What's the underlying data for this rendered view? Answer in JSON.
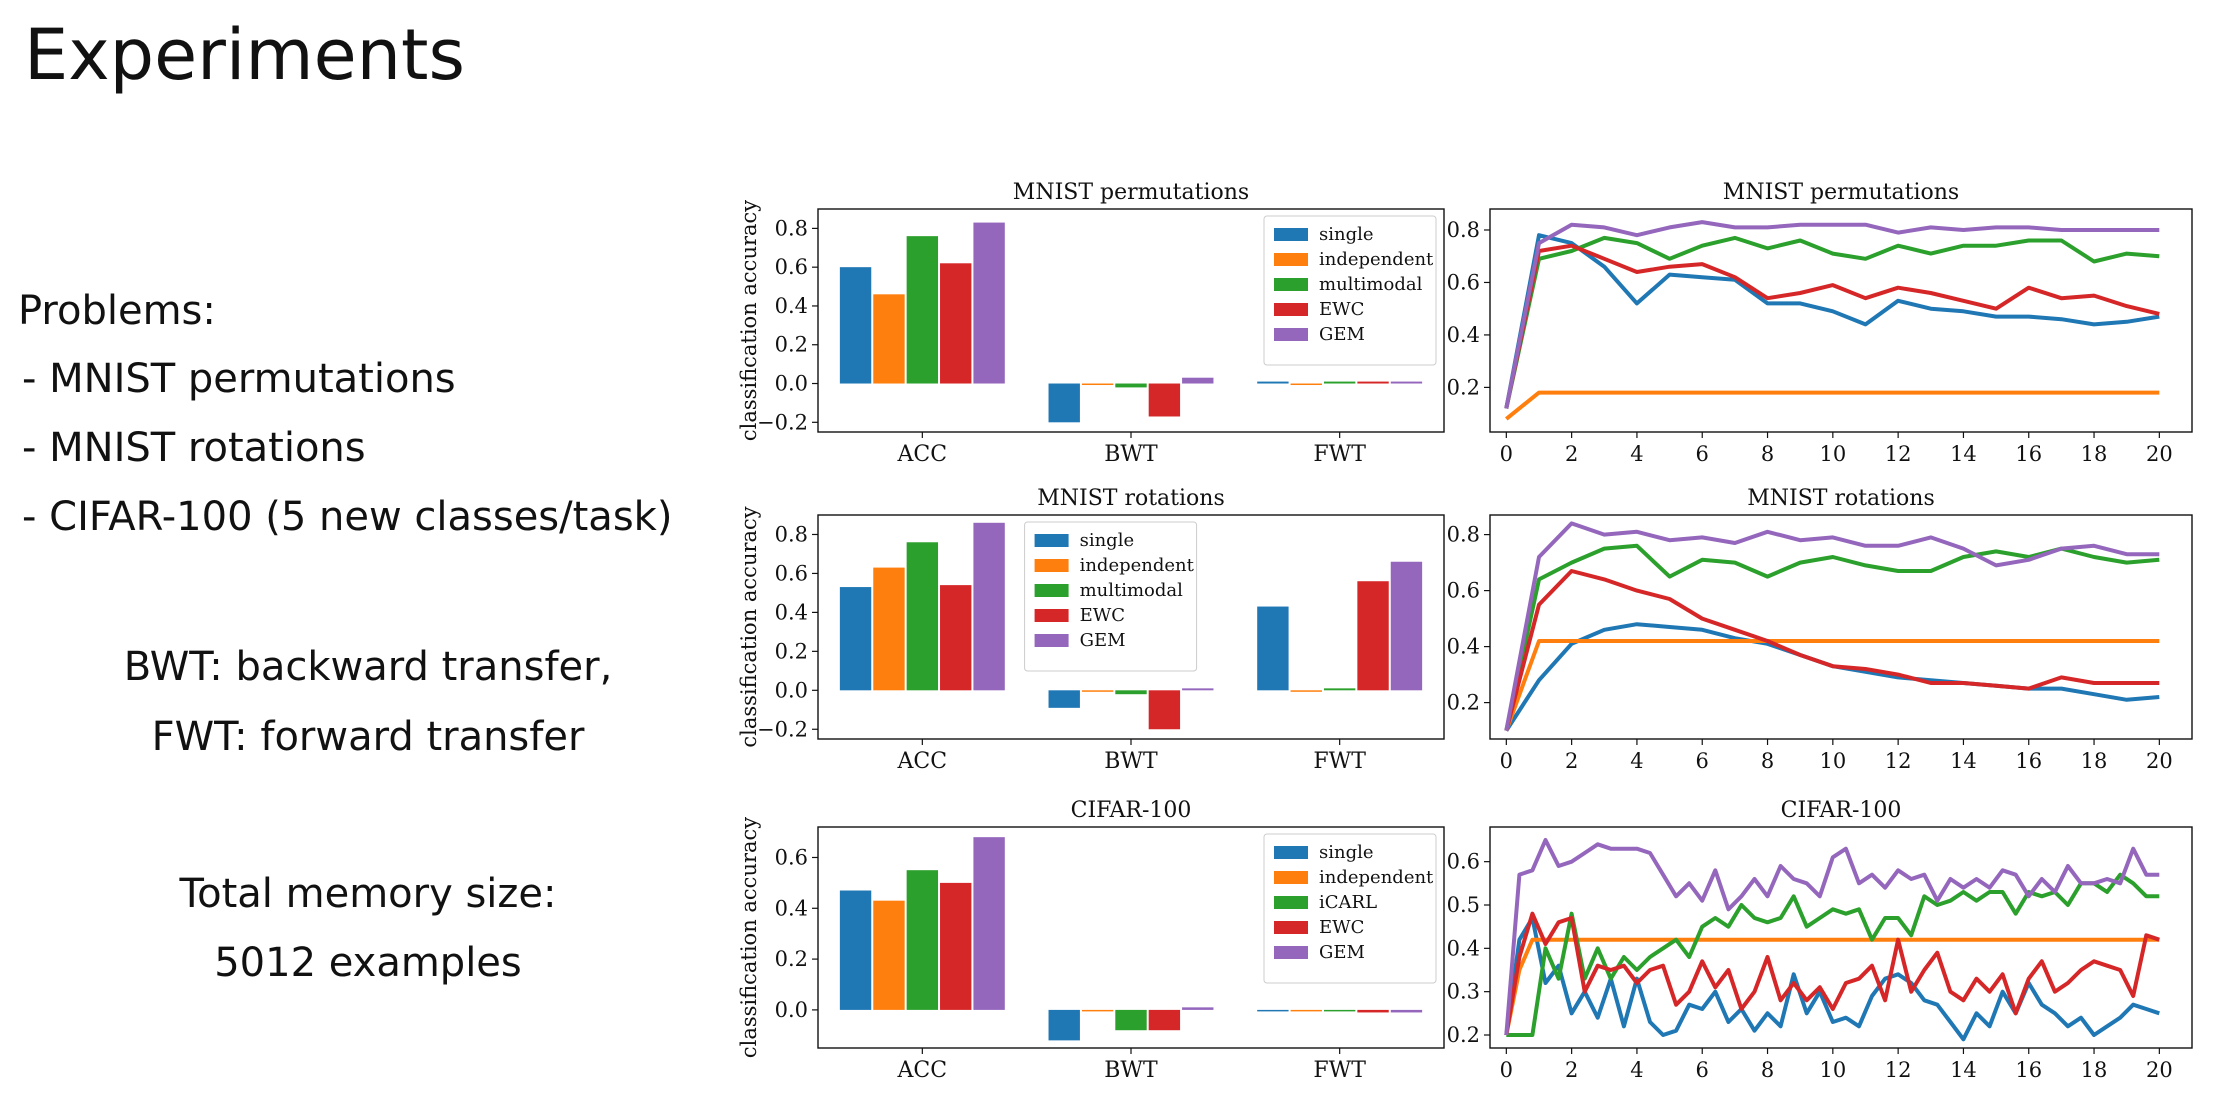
{
  "slide": {
    "title": "Experiments",
    "problems_heading": "Problems:",
    "problems": [
      "-  MNIST permutations",
      "-  MNIST rotations",
      "-  CIFAR-100 (5 new classes/task)"
    ],
    "transfer_lines": [
      "BWT: backward transfer,",
      "FWT: forward transfer"
    ],
    "memory_lines": [
      "Total memory size:",
      "5012 examples"
    ]
  },
  "colors": {
    "single": "#1f77b4",
    "independent": "#ff7f0e",
    "multimodal": "#2ca02c",
    "EWC": "#d62728",
    "GEM": "#9467bd"
  },
  "chart_data": [
    {
      "type": "bar",
      "title": "MNIST permutations",
      "categories": [
        "ACC",
        "BWT",
        "FWT"
      ],
      "ylabel": "classification accuracy",
      "ylim": [
        -0.25,
        0.9
      ],
      "yticks": [
        -0.2,
        0.0,
        0.2,
        0.4,
        0.6,
        0.8
      ],
      "legend": "top-right",
      "series": [
        {
          "name": "single",
          "values": [
            0.6,
            -0.2,
            0.01
          ]
        },
        {
          "name": "independent",
          "values": [
            0.46,
            0.0,
            0.0
          ]
        },
        {
          "name": "multimodal",
          "values": [
            0.76,
            -0.02,
            0.01
          ]
        },
        {
          "name": "EWC",
          "values": [
            0.62,
            -0.17,
            0.01
          ]
        },
        {
          "name": "GEM",
          "values": [
            0.83,
            0.03,
            0.01
          ]
        }
      ]
    },
    {
      "type": "line",
      "title": "MNIST permutations",
      "xlim": [
        -0.5,
        21
      ],
      "ylim": [
        0.03,
        0.88
      ],
      "xticks": [
        0,
        2,
        4,
        6,
        8,
        10,
        12,
        14,
        16,
        18,
        20
      ],
      "yticks": [
        0.2,
        0.4,
        0.6,
        0.8
      ],
      "x": [
        0,
        1,
        2,
        3,
        4,
        5,
        6,
        7,
        8,
        9,
        10,
        11,
        12,
        13,
        14,
        15,
        16,
        17,
        18,
        19,
        20
      ],
      "series": [
        {
          "name": "single",
          "values": [
            0.12,
            0.78,
            0.75,
            0.66,
            0.52,
            0.63,
            0.62,
            0.61,
            0.52,
            0.52,
            0.49,
            0.44,
            0.53,
            0.5,
            0.49,
            0.47,
            0.47,
            0.46,
            0.44,
            0.45,
            0.47
          ]
        },
        {
          "name": "independent",
          "values": [
            0.08,
            0.18,
            0.18,
            0.18,
            0.18,
            0.18,
            0.18,
            0.18,
            0.18,
            0.18,
            0.18,
            0.18,
            0.18,
            0.18,
            0.18,
            0.18,
            0.18,
            0.18,
            0.18,
            0.18,
            0.18
          ]
        },
        {
          "name": "multimodal",
          "values": [
            0.12,
            0.69,
            0.72,
            0.77,
            0.75,
            0.69,
            0.74,
            0.77,
            0.73,
            0.76,
            0.71,
            0.69,
            0.74,
            0.71,
            0.74,
            0.74,
            0.76,
            0.76,
            0.68,
            0.71,
            0.7
          ]
        },
        {
          "name": "EWC",
          "values": [
            0.12,
            0.72,
            0.74,
            0.69,
            0.64,
            0.66,
            0.67,
            0.62,
            0.54,
            0.56,
            0.59,
            0.54,
            0.58,
            0.56,
            0.53,
            0.5,
            0.58,
            0.54,
            0.55,
            0.51,
            0.48
          ]
        },
        {
          "name": "GEM",
          "values": [
            0.12,
            0.75,
            0.82,
            0.81,
            0.78,
            0.81,
            0.83,
            0.81,
            0.81,
            0.82,
            0.82,
            0.82,
            0.79,
            0.81,
            0.8,
            0.81,
            0.81,
            0.8,
            0.8,
            0.8,
            0.8
          ]
        }
      ]
    },
    {
      "type": "bar",
      "title": "MNIST rotations",
      "categories": [
        "ACC",
        "BWT",
        "FWT"
      ],
      "ylabel": "classification accuracy",
      "ylim": [
        -0.25,
        0.9
      ],
      "yticks": [
        -0.2,
        0.0,
        0.2,
        0.4,
        0.6,
        0.8
      ],
      "legend": "top-center",
      "series": [
        {
          "name": "single",
          "values": [
            0.53,
            -0.09,
            0.43
          ]
        },
        {
          "name": "independent",
          "values": [
            0.63,
            0.0,
            0.0
          ]
        },
        {
          "name": "multimodal",
          "values": [
            0.76,
            -0.02,
            0.01
          ]
        },
        {
          "name": "EWC",
          "values": [
            0.54,
            -0.2,
            0.56
          ]
        },
        {
          "name": "GEM",
          "values": [
            0.86,
            0.01,
            0.66
          ]
        }
      ]
    },
    {
      "type": "line",
      "title": "MNIST rotations",
      "xlim": [
        -0.5,
        21
      ],
      "ylim": [
        0.07,
        0.87
      ],
      "xticks": [
        0,
        2,
        4,
        6,
        8,
        10,
        12,
        14,
        16,
        18,
        20
      ],
      "yticks": [
        0.2,
        0.4,
        0.6,
        0.8
      ],
      "x": [
        0,
        1,
        2,
        3,
        4,
        5,
        6,
        7,
        8,
        9,
        10,
        11,
        12,
        13,
        14,
        15,
        16,
        17,
        18,
        19,
        20
      ],
      "series": [
        {
          "name": "single",
          "values": [
            0.1,
            0.28,
            0.41,
            0.46,
            0.48,
            0.47,
            0.46,
            0.43,
            0.41,
            0.37,
            0.33,
            0.31,
            0.29,
            0.28,
            0.27,
            0.26,
            0.25,
            0.25,
            0.23,
            0.21,
            0.22
          ]
        },
        {
          "name": "independent",
          "values": [
            0.1,
            0.42,
            0.42,
            0.42,
            0.42,
            0.42,
            0.42,
            0.42,
            0.42,
            0.42,
            0.42,
            0.42,
            0.42,
            0.42,
            0.42,
            0.42,
            0.42,
            0.42,
            0.42,
            0.42,
            0.42
          ]
        },
        {
          "name": "multimodal",
          "values": [
            0.1,
            0.64,
            0.7,
            0.75,
            0.76,
            0.65,
            0.71,
            0.7,
            0.65,
            0.7,
            0.72,
            0.69,
            0.67,
            0.67,
            0.72,
            0.74,
            0.72,
            0.75,
            0.72,
            0.7,
            0.71
          ]
        },
        {
          "name": "EWC",
          "values": [
            0.1,
            0.55,
            0.67,
            0.64,
            0.6,
            0.57,
            0.5,
            0.46,
            0.42,
            0.37,
            0.33,
            0.32,
            0.3,
            0.27,
            0.27,
            0.26,
            0.25,
            0.29,
            0.27,
            0.27,
            0.27
          ]
        },
        {
          "name": "GEM",
          "values": [
            0.1,
            0.72,
            0.84,
            0.8,
            0.81,
            0.78,
            0.79,
            0.77,
            0.81,
            0.78,
            0.79,
            0.76,
            0.76,
            0.79,
            0.75,
            0.69,
            0.71,
            0.75,
            0.76,
            0.73,
            0.73
          ]
        }
      ]
    },
    {
      "type": "bar",
      "title": "CIFAR-100",
      "categories": [
        "ACC",
        "BWT",
        "FWT"
      ],
      "ylabel": "classification accuracy",
      "ylim": [
        -0.15,
        0.72
      ],
      "yticks": [
        0.0,
        0.2,
        0.4,
        0.6
      ],
      "legend": "top-right",
      "series": [
        {
          "name": "single",
          "values": [
            0.47,
            -0.12,
            0.0
          ]
        },
        {
          "name": "independent",
          "values": [
            0.43,
            0.0,
            0.0
          ]
        },
        {
          "name": "iCARL",
          "values": [
            0.55,
            -0.08,
            0.0
          ]
        },
        {
          "name": "EWC",
          "values": [
            0.5,
            -0.08,
            -0.01
          ]
        },
        {
          "name": "GEM",
          "values": [
            0.68,
            0.01,
            -0.01
          ]
        }
      ]
    },
    {
      "type": "line",
      "title": "CIFAR-100",
      "xlim": [
        -0.5,
        21
      ],
      "ylim": [
        0.17,
        0.68
      ],
      "xticks": [
        0,
        2,
        4,
        6,
        8,
        10,
        12,
        14,
        16,
        18,
        20
      ],
      "yticks": [
        0.2,
        0.3,
        0.4,
        0.5,
        0.6
      ],
      "x": [
        0,
        0.4,
        0.8,
        1.2,
        1.6,
        2,
        2.4,
        2.8,
        3.2,
        3.6,
        4,
        4.4,
        4.8,
        5.2,
        5.6,
        6,
        6.4,
        6.8,
        7.2,
        7.6,
        8,
        8.4,
        8.8,
        9.2,
        9.6,
        10,
        10.4,
        10.8,
        11.2,
        11.6,
        12,
        12.4,
        12.8,
        13.2,
        13.6,
        14,
        14.4,
        14.8,
        15.2,
        15.6,
        16,
        16.4,
        16.8,
        17.2,
        17.6,
        18,
        18.4,
        18.8,
        19.2,
        19.6,
        20
      ],
      "series": [
        {
          "name": "single",
          "values": [
            0.2,
            0.42,
            0.47,
            0.32,
            0.36,
            0.25,
            0.3,
            0.24,
            0.33,
            0.22,
            0.33,
            0.23,
            0.2,
            0.21,
            0.27,
            0.26,
            0.3,
            0.23,
            0.26,
            0.21,
            0.25,
            0.22,
            0.34,
            0.25,
            0.3,
            0.23,
            0.24,
            0.22,
            0.29,
            0.33,
            0.34,
            0.32,
            0.28,
            0.27,
            0.23,
            0.19,
            0.25,
            0.22,
            0.3,
            0.25,
            0.32,
            0.27,
            0.25,
            0.22,
            0.24,
            0.2,
            0.22,
            0.24,
            0.27,
            0.26,
            0.25
          ]
        },
        {
          "name": "independent",
          "values": [
            0.2,
            0.35,
            0.42,
            0.42,
            0.42,
            0.42,
            0.42,
            0.42,
            0.42,
            0.42,
            0.42,
            0.42,
            0.42,
            0.42,
            0.42,
            0.42,
            0.42,
            0.42,
            0.42,
            0.42,
            0.42,
            0.42,
            0.42,
            0.42,
            0.42,
            0.42,
            0.42,
            0.42,
            0.42,
            0.42,
            0.42,
            0.42,
            0.42,
            0.42,
            0.42,
            0.42,
            0.42,
            0.42,
            0.42,
            0.42,
            0.42,
            0.42,
            0.42,
            0.42,
            0.42,
            0.42,
            0.42,
            0.42,
            0.42,
            0.42,
            0.42
          ]
        },
        {
          "name": "iCARL",
          "values": [
            0.2,
            0.2,
            0.2,
            0.4,
            0.33,
            0.48,
            0.33,
            0.4,
            0.33,
            0.38,
            0.35,
            0.38,
            0.4,
            0.42,
            0.38,
            0.45,
            0.47,
            0.45,
            0.5,
            0.47,
            0.46,
            0.47,
            0.52,
            0.45,
            0.47,
            0.49,
            0.48,
            0.49,
            0.42,
            0.47,
            0.47,
            0.43,
            0.52,
            0.5,
            0.51,
            0.53,
            0.51,
            0.53,
            0.53,
            0.48,
            0.53,
            0.52,
            0.53,
            0.5,
            0.55,
            0.55,
            0.53,
            0.57,
            0.55,
            0.52,
            0.52
          ]
        },
        {
          "name": "EWC",
          "values": [
            0.2,
            0.38,
            0.48,
            0.41,
            0.46,
            0.47,
            0.3,
            0.36,
            0.35,
            0.36,
            0.32,
            0.35,
            0.36,
            0.27,
            0.3,
            0.37,
            0.31,
            0.35,
            0.26,
            0.3,
            0.38,
            0.28,
            0.32,
            0.28,
            0.31,
            0.26,
            0.32,
            0.33,
            0.36,
            0.28,
            0.42,
            0.3,
            0.35,
            0.39,
            0.3,
            0.28,
            0.33,
            0.3,
            0.34,
            0.25,
            0.33,
            0.37,
            0.3,
            0.32,
            0.35,
            0.37,
            0.36,
            0.35,
            0.29,
            0.43,
            0.42
          ]
        },
        {
          "name": "GEM",
          "values": [
            0.2,
            0.57,
            0.58,
            0.65,
            0.59,
            0.6,
            0.62,
            0.64,
            0.63,
            0.63,
            0.63,
            0.62,
            0.57,
            0.52,
            0.55,
            0.51,
            0.58,
            0.49,
            0.52,
            0.56,
            0.52,
            0.59,
            0.56,
            0.55,
            0.52,
            0.61,
            0.63,
            0.55,
            0.57,
            0.54,
            0.58,
            0.56,
            0.57,
            0.51,
            0.56,
            0.54,
            0.56,
            0.54,
            0.58,
            0.57,
            0.52,
            0.56,
            0.53,
            0.59,
            0.55,
            0.55,
            0.56,
            0.55,
            0.63,
            0.57,
            0.57
          ]
        }
      ]
    }
  ]
}
